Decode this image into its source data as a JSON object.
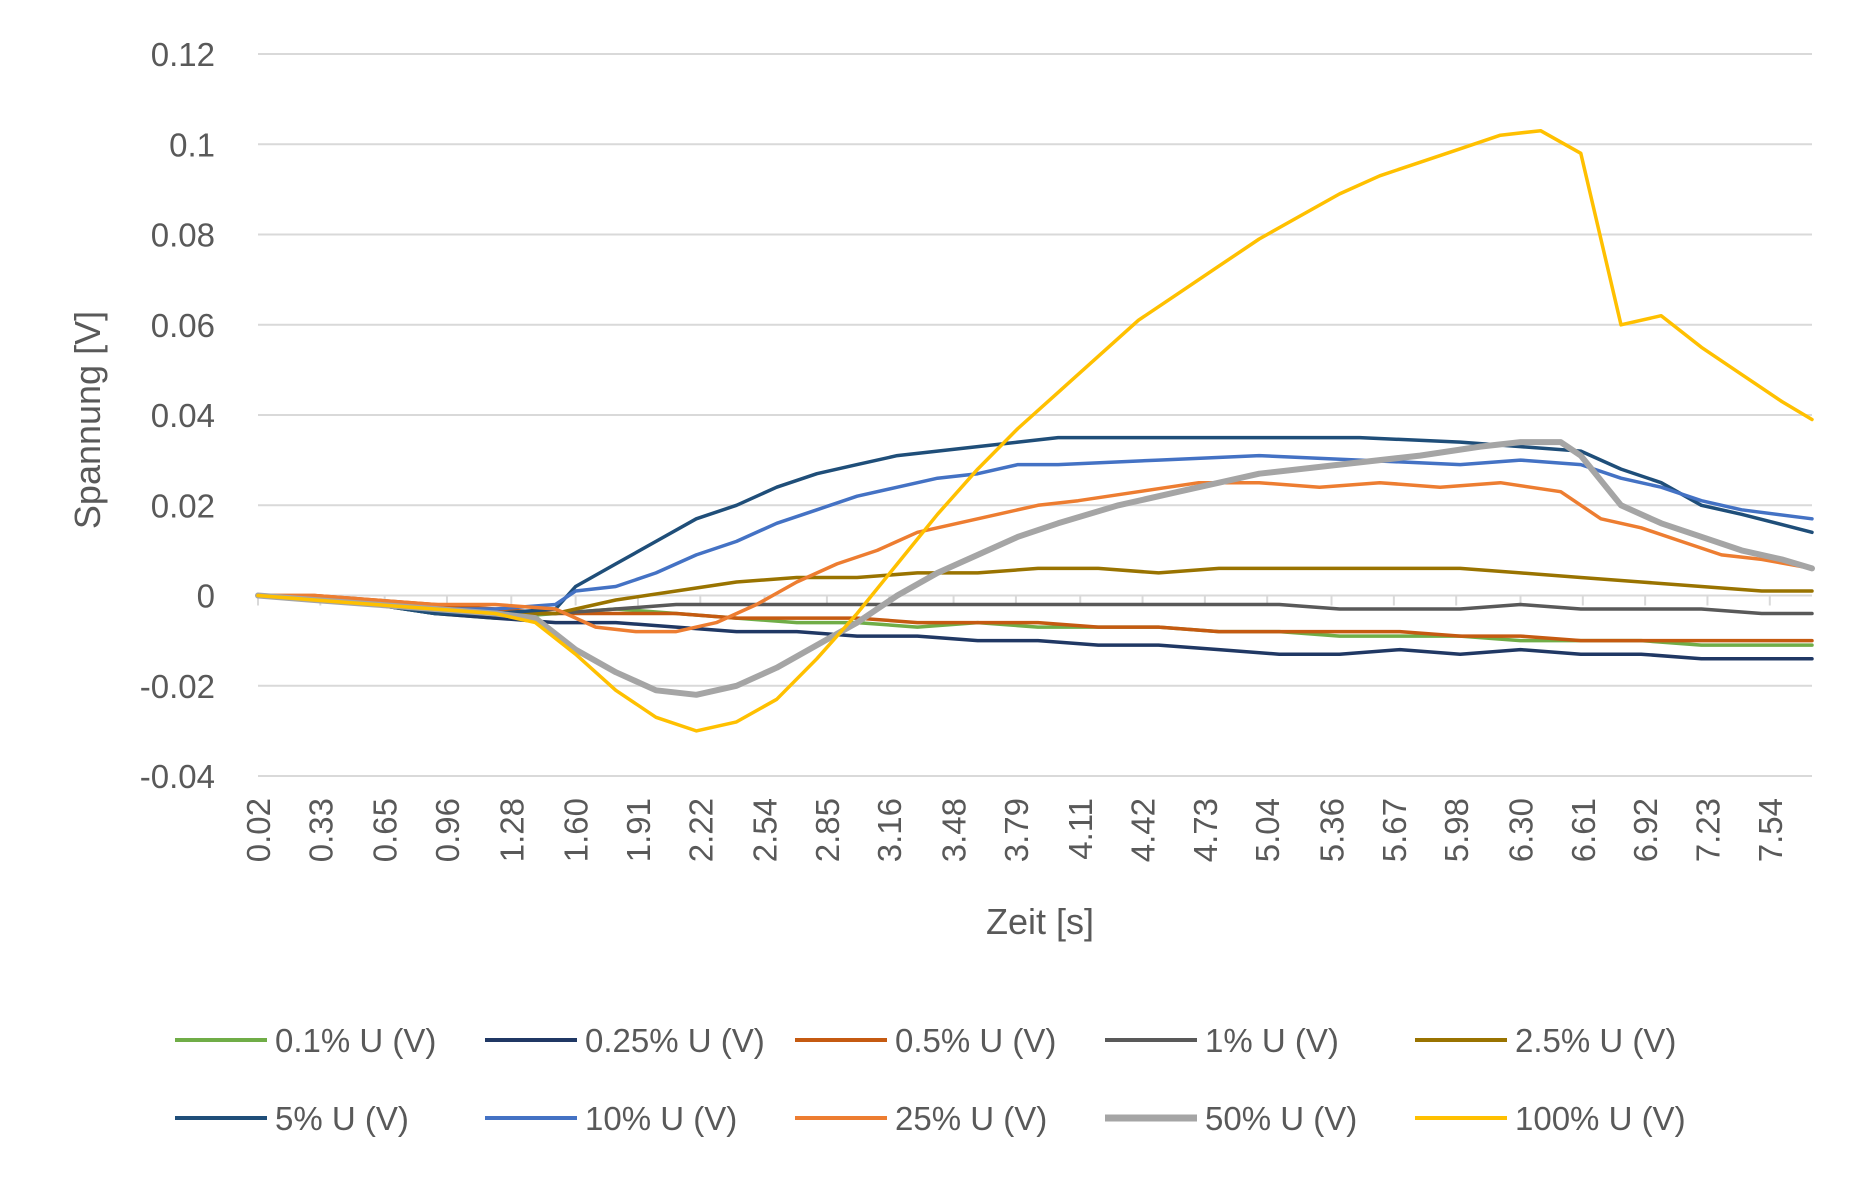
{
  "chart_data": {
    "type": "line",
    "xlabel": "Zeit [s]",
    "ylabel": "Spannung [V]",
    "ylim": [
      -0.04,
      0.12
    ],
    "xlim": [
      0.02,
      7.75
    ],
    "y_ticks": [
      "0.12",
      "0.1",
      "0.08",
      "0.06",
      "0.04",
      "0.02",
      "0",
      "-0.02",
      "-0.04"
    ],
    "y_tick_values": [
      0.12,
      0.1,
      0.08,
      0.06,
      0.04,
      0.02,
      0,
      -0.02,
      -0.04
    ],
    "x_ticks": [
      "0.02",
      "0.33",
      "0.65",
      "0.96",
      "1.28",
      "1.60",
      "1.91",
      "2.22",
      "2.54",
      "2.85",
      "3.16",
      "3.48",
      "3.79",
      "4.11",
      "4.42",
      "4.73",
      "5.04",
      "5.36",
      "5.67",
      "5.98",
      "6.30",
      "6.61",
      "6.92",
      "7.23",
      "7.54"
    ],
    "grid": "horizontal",
    "legend_position": "bottom",
    "series": [
      {
        "name": "0.1% U (V)",
        "color": "#70AD47",
        "x": [
          0.02,
          0.3,
          0.6,
          0.9,
          1.2,
          1.5,
          1.8,
          2.1,
          2.4,
          2.7,
          3.0,
          3.3,
          3.6,
          3.9,
          4.2,
          4.5,
          4.8,
          5.1,
          5.4,
          5.7,
          6.0,
          6.3,
          6.6,
          6.9,
          7.2,
          7.5,
          7.75
        ],
        "y": [
          0.0,
          -0.001,
          -0.002,
          -0.004,
          -0.005,
          -0.004,
          -0.003,
          -0.004,
          -0.005,
          -0.006,
          -0.006,
          -0.007,
          -0.006,
          -0.007,
          -0.007,
          -0.007,
          -0.008,
          -0.008,
          -0.009,
          -0.009,
          -0.009,
          -0.01,
          -0.01,
          -0.01,
          -0.011,
          -0.011,
          -0.011
        ]
      },
      {
        "name": "0.25% U (V)",
        "color": "#203864",
        "x": [
          0.02,
          0.3,
          0.6,
          0.9,
          1.2,
          1.5,
          1.8,
          2.1,
          2.4,
          2.7,
          3.0,
          3.3,
          3.6,
          3.9,
          4.2,
          4.5,
          4.8,
          5.1,
          5.4,
          5.7,
          6.0,
          6.3,
          6.6,
          6.9,
          7.2,
          7.5,
          7.75
        ],
        "y": [
          0.0,
          -0.001,
          -0.002,
          -0.004,
          -0.005,
          -0.006,
          -0.006,
          -0.007,
          -0.008,
          -0.008,
          -0.009,
          -0.009,
          -0.01,
          -0.01,
          -0.011,
          -0.011,
          -0.012,
          -0.013,
          -0.013,
          -0.012,
          -0.013,
          -0.012,
          -0.013,
          -0.013,
          -0.014,
          -0.014,
          -0.014
        ]
      },
      {
        "name": "0.5% U (V)",
        "color": "#C55A11",
        "x": [
          0.02,
          0.3,
          0.6,
          0.9,
          1.2,
          1.5,
          1.8,
          2.1,
          2.4,
          2.7,
          3.0,
          3.3,
          3.6,
          3.9,
          4.2,
          4.5,
          4.8,
          5.1,
          5.4,
          5.7,
          6.0,
          6.3,
          6.6,
          6.9,
          7.2,
          7.5,
          7.75
        ],
        "y": [
          0.0,
          0.0,
          -0.001,
          -0.002,
          -0.003,
          -0.004,
          -0.004,
          -0.004,
          -0.005,
          -0.005,
          -0.005,
          -0.006,
          -0.006,
          -0.006,
          -0.007,
          -0.007,
          -0.008,
          -0.008,
          -0.008,
          -0.008,
          -0.009,
          -0.009,
          -0.01,
          -0.01,
          -0.01,
          -0.01,
          -0.01
        ]
      },
      {
        "name": "1% U (V)",
        "color": "#595959",
        "x": [
          0.02,
          0.3,
          0.6,
          0.9,
          1.2,
          1.5,
          1.8,
          2.1,
          2.4,
          2.7,
          3.0,
          3.3,
          3.6,
          3.9,
          4.2,
          4.5,
          4.8,
          5.1,
          5.4,
          5.7,
          6.0,
          6.3,
          6.6,
          6.9,
          7.2,
          7.5,
          7.75
        ],
        "y": [
          0.0,
          -0.001,
          -0.002,
          -0.003,
          -0.004,
          -0.004,
          -0.003,
          -0.002,
          -0.002,
          -0.002,
          -0.002,
          -0.002,
          -0.002,
          -0.002,
          -0.002,
          -0.002,
          -0.002,
          -0.002,
          -0.003,
          -0.003,
          -0.003,
          -0.002,
          -0.003,
          -0.003,
          -0.003,
          -0.004,
          -0.004
        ]
      },
      {
        "name": "2.5% U (V)",
        "color": "#997300",
        "x": [
          0.02,
          0.3,
          0.6,
          0.9,
          1.2,
          1.5,
          1.8,
          2.1,
          2.4,
          2.7,
          3.0,
          3.3,
          3.6,
          3.9,
          4.2,
          4.5,
          4.8,
          5.1,
          5.4,
          5.7,
          6.0,
          6.3,
          6.6,
          6.9,
          7.2,
          7.5,
          7.75
        ],
        "y": [
          0.0,
          -0.001,
          -0.002,
          -0.003,
          -0.004,
          -0.004,
          -0.001,
          0.001,
          0.003,
          0.004,
          0.004,
          0.005,
          0.005,
          0.006,
          0.006,
          0.005,
          0.006,
          0.006,
          0.006,
          0.006,
          0.006,
          0.005,
          0.004,
          0.003,
          0.002,
          0.001,
          0.001
        ]
      },
      {
        "name": "5% U (V)",
        "color": "#1F4E79",
        "x": [
          0.02,
          0.3,
          0.6,
          0.9,
          1.2,
          1.5,
          1.6,
          1.8,
          2.0,
          2.2,
          2.4,
          2.6,
          2.8,
          3.0,
          3.2,
          3.4,
          3.6,
          3.8,
          4.0,
          4.5,
          5.0,
          5.5,
          6.0,
          6.3,
          6.6,
          6.8,
          7.0,
          7.2,
          7.4,
          7.75
        ],
        "y": [
          0.0,
          -0.001,
          -0.002,
          -0.004,
          -0.004,
          -0.003,
          0.002,
          0.007,
          0.012,
          0.017,
          0.02,
          0.024,
          0.027,
          0.029,
          0.031,
          0.032,
          0.033,
          0.034,
          0.035,
          0.035,
          0.035,
          0.035,
          0.034,
          0.033,
          0.032,
          0.028,
          0.025,
          0.02,
          0.018,
          0.014
        ]
      },
      {
        "name": "10% U (V)",
        "color": "#4472C4",
        "x": [
          0.02,
          0.3,
          0.6,
          0.9,
          1.2,
          1.5,
          1.6,
          1.8,
          2.0,
          2.2,
          2.4,
          2.6,
          2.8,
          3.0,
          3.2,
          3.4,
          3.6,
          3.8,
          4.0,
          4.5,
          5.0,
          5.5,
          6.0,
          6.3,
          6.6,
          6.8,
          7.0,
          7.2,
          7.4,
          7.75
        ],
        "y": [
          0.0,
          -0.001,
          -0.002,
          -0.003,
          -0.003,
          -0.002,
          0.001,
          0.002,
          0.005,
          0.009,
          0.012,
          0.016,
          0.019,
          0.022,
          0.024,
          0.026,
          0.027,
          0.029,
          0.029,
          0.03,
          0.031,
          0.03,
          0.029,
          0.03,
          0.029,
          0.026,
          0.024,
          0.021,
          0.019,
          0.017
        ]
      },
      {
        "name": "25% U (V)",
        "color": "#ED7D31",
        "x": [
          0.02,
          0.3,
          0.6,
          0.9,
          1.2,
          1.5,
          1.7,
          1.9,
          2.1,
          2.3,
          2.5,
          2.7,
          2.9,
          3.1,
          3.3,
          3.5,
          3.7,
          3.9,
          4.1,
          4.4,
          4.7,
          5.0,
          5.3,
          5.6,
          5.9,
          6.2,
          6.5,
          6.7,
          6.9,
          7.1,
          7.3,
          7.5,
          7.75
        ],
        "y": [
          0.0,
          0.0,
          -0.001,
          -0.002,
          -0.002,
          -0.003,
          -0.007,
          -0.008,
          -0.008,
          -0.006,
          -0.002,
          0.003,
          0.007,
          0.01,
          0.014,
          0.016,
          0.018,
          0.02,
          0.021,
          0.023,
          0.025,
          0.025,
          0.024,
          0.025,
          0.024,
          0.025,
          0.023,
          0.017,
          0.015,
          0.012,
          0.009,
          0.008,
          0.006
        ]
      },
      {
        "name": "50% U (V)",
        "color": "#A5A5A5",
        "x": [
          0.02,
          0.3,
          0.6,
          0.9,
          1.2,
          1.4,
          1.6,
          1.8,
          2.0,
          2.2,
          2.4,
          2.6,
          2.8,
          3.0,
          3.2,
          3.4,
          3.6,
          3.8,
          4.0,
          4.3,
          4.6,
          5.0,
          5.4,
          5.8,
          6.1,
          6.3,
          6.5,
          6.6,
          6.8,
          7.0,
          7.2,
          7.4,
          7.6,
          7.75
        ],
        "y": [
          0.0,
          -0.001,
          -0.002,
          -0.003,
          -0.004,
          -0.005,
          -0.012,
          -0.017,
          -0.021,
          -0.022,
          -0.02,
          -0.016,
          -0.011,
          -0.006,
          0.0,
          0.005,
          0.009,
          0.013,
          0.016,
          0.02,
          0.023,
          0.027,
          0.029,
          0.031,
          0.033,
          0.034,
          0.034,
          0.031,
          0.02,
          0.016,
          0.013,
          0.01,
          0.008,
          0.006
        ]
      },
      {
        "name": "100% U (V)",
        "color": "#FFC000",
        "x": [
          0.02,
          0.3,
          0.6,
          0.9,
          1.2,
          1.4,
          1.6,
          1.8,
          2.0,
          2.2,
          2.4,
          2.6,
          2.8,
          3.0,
          3.2,
          3.4,
          3.6,
          3.8,
          4.0,
          4.2,
          4.4,
          4.6,
          4.8,
          5.0,
          5.2,
          5.4,
          5.6,
          5.8,
          6.0,
          6.2,
          6.4,
          6.6,
          6.8,
          7.0,
          7.2,
          7.4,
          7.6,
          7.75
        ],
        "y": [
          0.0,
          -0.001,
          -0.002,
          -0.003,
          -0.004,
          -0.006,
          -0.013,
          -0.021,
          -0.027,
          -0.03,
          -0.028,
          -0.023,
          -0.014,
          -0.004,
          0.007,
          0.018,
          0.028,
          0.037,
          0.045,
          0.053,
          0.061,
          0.067,
          0.073,
          0.079,
          0.084,
          0.089,
          0.093,
          0.096,
          0.099,
          0.102,
          0.103,
          0.098,
          0.06,
          0.062,
          0.055,
          0.049,
          0.043,
          0.039
        ]
      }
    ]
  }
}
